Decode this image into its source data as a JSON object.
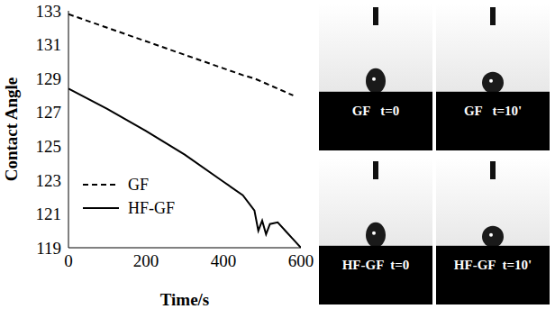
{
  "chart_data": {
    "type": "line",
    "x_label": "Time/s",
    "y_label": "Contact Angle",
    "x": [
      0,
      100,
      200,
      300,
      400,
      450,
      480,
      490,
      500,
      510,
      520,
      540,
      560,
      580,
      600
    ],
    "series": [
      {
        "name": "GF",
        "color": "#000000",
        "line_style": "dashed",
        "values": [
          132.8,
          132.0,
          131.2,
          130.4,
          129.6,
          129.2,
          129.0,
          128.9,
          128.8,
          128.7,
          128.6,
          128.4,
          128.2,
          128.0,
          null
        ]
      },
      {
        "name": "HF-GF",
        "color": "#000000",
        "line_style": "solid",
        "values": [
          128.4,
          127.2,
          125.9,
          124.5,
          122.9,
          122.1,
          121.2,
          120.0,
          120.6,
          119.8,
          120.4,
          120.5,
          120.0,
          119.5,
          119.0
        ]
      }
    ],
    "xlim": [
      0,
      600
    ],
    "xticks": [
      0,
      200,
      400,
      600
    ],
    "ylim": [
      119,
      133
    ],
    "yticks": [
      119,
      121,
      123,
      125,
      127,
      129,
      131,
      133
    ],
    "grid": false,
    "legend": "lower left",
    "annotations": [
      "GF   t=0",
      "GF   t=10'",
      "HF-GF  t=0",
      "HF-GF  t=10'"
    ]
  }
}
